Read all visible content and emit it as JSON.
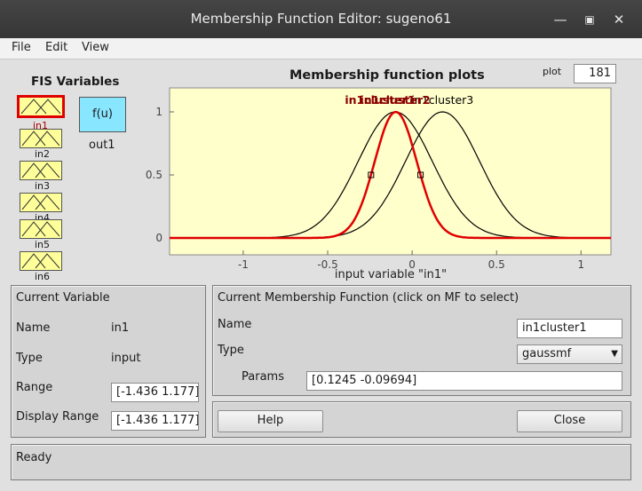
{
  "window": {
    "title": "Membership Function Editor: sugeno61",
    "min_icon": "minimize-icon",
    "max_icon": "maximize-icon",
    "close_icon": "close-icon"
  },
  "menu": [
    "File",
    "Edit",
    "View"
  ],
  "fis_variables": {
    "heading": "FIS Variables",
    "inputs": [
      "in1",
      "in2",
      "in3",
      "in4",
      "in5",
      "in6"
    ],
    "output": {
      "symbol": "f(u)",
      "name": "out1"
    },
    "selected": "in1"
  },
  "plot": {
    "title": "Membership function plots",
    "plot_points_label": "plot",
    "plot_points_value": "181",
    "xlabel": "input variable \"in1\"",
    "mf_labels": [
      "in1cluster1",
      "in1cluster2",
      "in1cluster3"
    ]
  },
  "chart_data": {
    "type": "line",
    "xlim": [
      -1.436,
      1.177
    ],
    "ylim": [
      0,
      1
    ],
    "xticks": [
      "-1",
      "-0.5",
      "0",
      "0.5",
      "1"
    ],
    "yticks": [
      "0",
      "0.5",
      "1"
    ],
    "series": [
      {
        "name": "in1cluster1",
        "sigma": 0.1245,
        "center": -0.09694,
        "color": "#e00000"
      },
      {
        "name": "in1cluster2",
        "sigma": 0.22,
        "center": -0.1,
        "color": "#000000"
      },
      {
        "name": "in1cluster3",
        "sigma": 0.22,
        "center": 0.18,
        "color": "#000000"
      }
    ],
    "colors": {
      "background": "#ffffcc",
      "selected": "#e00000"
    }
  },
  "current_variable": {
    "heading": "Current Variable",
    "name_label": "Name",
    "name_value": "in1",
    "type_label": "Type",
    "type_value": "input",
    "range_label": "Range",
    "range_value": "[-1.436 1.177]",
    "display_range_label": "Display Range",
    "display_range_value": "[-1.436 1.177]"
  },
  "current_mf": {
    "heading": "Current Membership Function (click on MF to select)",
    "name_label": "Name",
    "name_value": "in1cluster1",
    "type_label": "Type",
    "type_value": "gaussmf",
    "params_label": "Params",
    "params_value": "[0.1245 -0.09694]"
  },
  "buttons": {
    "help": "Help",
    "close": "Close"
  },
  "status": "Ready"
}
